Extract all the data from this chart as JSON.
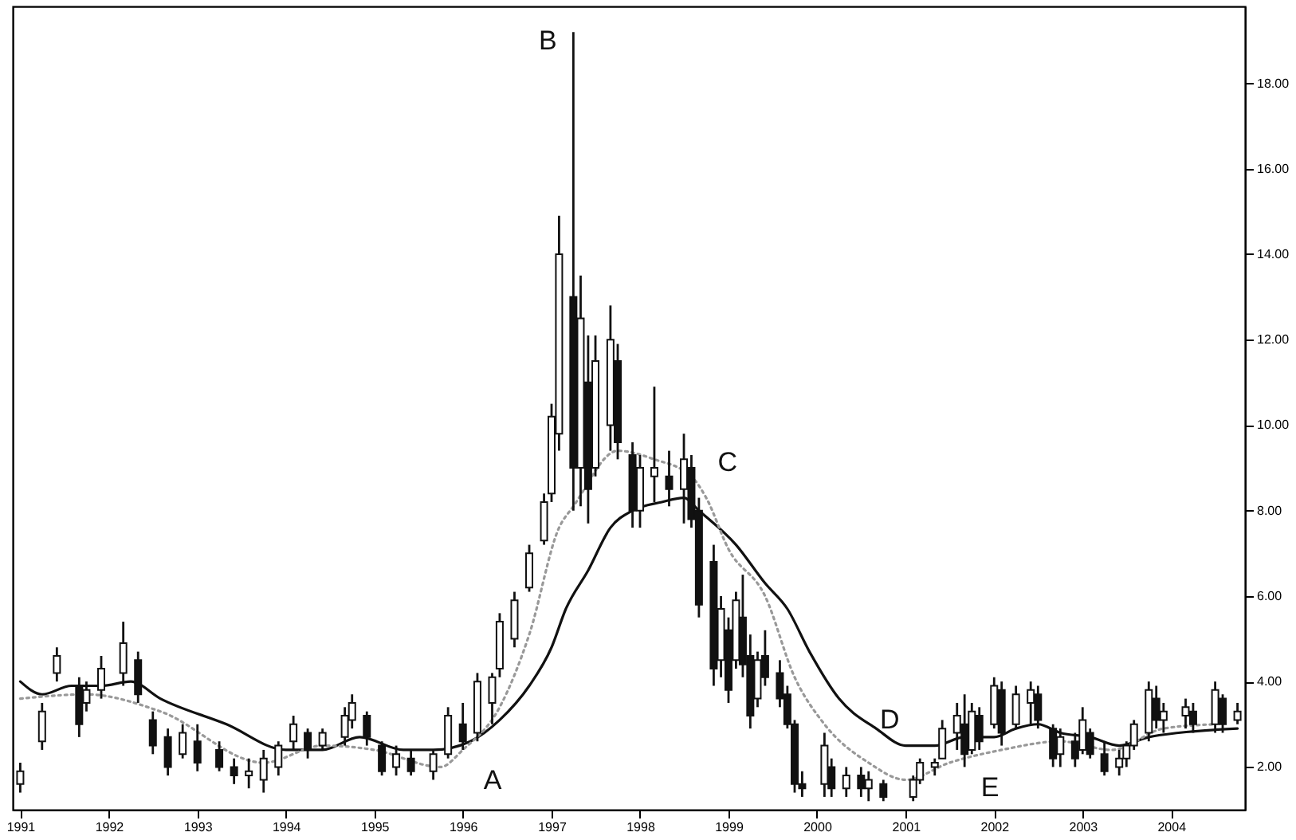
{
  "chart_data": {
    "type": "candlestick",
    "color": "#111111",
    "x": [
      "1991-01",
      "1991-04",
      "1991-06",
      "1991-09",
      "1991-10",
      "1991-12",
      "1992-03",
      "1992-05",
      "1992-07",
      "1992-09",
      "1992-11",
      "1993-01",
      "1993-04",
      "1993-06",
      "1993-08",
      "1993-10",
      "1993-12",
      "1994-02",
      "1994-04",
      "1994-06",
      "1994-09",
      "1994-10",
      "1994-12",
      "1995-02",
      "1995-04",
      "1995-06",
      "1995-09",
      "1995-11",
      "1996-01",
      "1996-03",
      "1996-05",
      "1996-06",
      "1996-08",
      "1996-10",
      "1996-12",
      "1997-01",
      "1997-02",
      "1997-04",
      "1997-05",
      "1997-06",
      "1997-07",
      "1997-09",
      "1997-10",
      "1997-12",
      "1998-01",
      "1998-03",
      "1998-05",
      "1998-07",
      "1998-08",
      "1998-09",
      "1998-11",
      "1998-12",
      "1999-01",
      "1999-02",
      "1999-03",
      "1999-04",
      "1999-05",
      "1999-06",
      "1999-08",
      "1999-09",
      "1999-10",
      "1999-11",
      "2000-02",
      "2000-03",
      "2000-05",
      "2000-07",
      "2000-08",
      "2000-10",
      "2001-02",
      "2001-03",
      "2001-05",
      "2001-06",
      "2001-08",
      "2001-09",
      "2001-10",
      "2001-11",
      "2002-01",
      "2002-02",
      "2002-04",
      "2002-06",
      "2002-07",
      "2002-09",
      "2002-10",
      "2002-12",
      "2003-01",
      "2003-02",
      "2003-04",
      "2003-06",
      "2003-07",
      "2003-08",
      "2003-10",
      "2003-11",
      "2003-12",
      "2004-03",
      "2004-04",
      "2004-07",
      "2004-08",
      "2004-10"
    ],
    "ohlc": [
      [
        1.6,
        2.1,
        1.4,
        1.9
      ],
      [
        2.6,
        3.5,
        2.4,
        3.3
      ],
      [
        4.2,
        4.8,
        4.0,
        4.6
      ],
      [
        3.9,
        4.1,
        2.7,
        3.0
      ],
      [
        3.5,
        4.0,
        3.3,
        3.8
      ],
      [
        3.8,
        4.6,
        3.6,
        4.3
      ],
      [
        4.2,
        5.4,
        3.9,
        4.9
      ],
      [
        4.5,
        4.7,
        3.5,
        3.7
      ],
      [
        3.1,
        3.3,
        2.3,
        2.5
      ],
      [
        2.7,
        2.9,
        1.8,
        2.0
      ],
      [
        2.3,
        3.0,
        2.2,
        2.8
      ],
      [
        2.6,
        3.0,
        1.9,
        2.1
      ],
      [
        2.4,
        2.6,
        1.9,
        2.0
      ],
      [
        2.0,
        2.2,
        1.6,
        1.8
      ],
      [
        1.8,
        2.2,
        1.5,
        1.9
      ],
      [
        1.7,
        2.4,
        1.4,
        2.2
      ],
      [
        2.0,
        2.6,
        1.8,
        2.5
      ],
      [
        2.6,
        3.2,
        2.4,
        3.0
      ],
      [
        2.8,
        2.9,
        2.2,
        2.4
      ],
      [
        2.5,
        2.9,
        2.4,
        2.8
      ],
      [
        2.7,
        3.4,
        2.5,
        3.2
      ],
      [
        3.1,
        3.7,
        2.9,
        3.5
      ],
      [
        3.2,
        3.3,
        2.5,
        2.7
      ],
      [
        2.5,
        2.6,
        1.8,
        1.9
      ],
      [
        2.0,
        2.5,
        1.8,
        2.3
      ],
      [
        2.2,
        2.4,
        1.8,
        1.9
      ],
      [
        1.9,
        2.4,
        1.7,
        2.3
      ],
      [
        2.3,
        3.4,
        2.2,
        3.2
      ],
      [
        3.0,
        3.5,
        2.4,
        2.6
      ],
      [
        2.8,
        4.2,
        2.6,
        4.0
      ],
      [
        3.5,
        4.2,
        3.0,
        4.1
      ],
      [
        4.3,
        5.6,
        4.1,
        5.4
      ],
      [
        5.0,
        6.1,
        4.8,
        5.9
      ],
      [
        6.2,
        7.2,
        6.1,
        7.0
      ],
      [
        7.3,
        8.4,
        7.2,
        8.2
      ],
      [
        8.4,
        10.5,
        8.2,
        10.2
      ],
      [
        9.8,
        14.9,
        9.4,
        14.0
      ],
      [
        13.0,
        19.2,
        8.0,
        9.0
      ],
      [
        9.0,
        13.5,
        8.1,
        12.5
      ],
      [
        11.0,
        12.1,
        7.7,
        8.5
      ],
      [
        9.0,
        12.1,
        8.8,
        11.5
      ],
      [
        10.0,
        12.8,
        9.4,
        12.0
      ],
      [
        11.5,
        11.9,
        9.2,
        9.6
      ],
      [
        9.3,
        9.6,
        7.6,
        8.0
      ],
      [
        8.0,
        9.3,
        7.6,
        9.0
      ],
      [
        8.8,
        10.9,
        8.2,
        9.0
      ],
      [
        8.8,
        9.4,
        8.1,
        8.5
      ],
      [
        8.5,
        9.8,
        7.7,
        9.2
      ],
      [
        9.0,
        9.3,
        7.6,
        7.8
      ],
      [
        8.0,
        8.3,
        5.5,
        5.8
      ],
      [
        6.8,
        7.2,
        3.9,
        4.3
      ],
      [
        4.5,
        6.0,
        4.1,
        5.7
      ],
      [
        5.2,
        5.5,
        3.5,
        3.8
      ],
      [
        4.5,
        6.1,
        4.3,
        5.9
      ],
      [
        5.5,
        6.5,
        4.1,
        4.4
      ],
      [
        4.6,
        5.1,
        2.9,
        3.2
      ],
      [
        3.6,
        4.7,
        3.4,
        4.5
      ],
      [
        4.6,
        5.2,
        3.9,
        4.1
      ],
      [
        4.2,
        4.5,
        3.4,
        3.6
      ],
      [
        3.7,
        3.9,
        2.9,
        3.0
      ],
      [
        3.0,
        3.1,
        1.4,
        1.6
      ],
      [
        1.6,
        1.9,
        1.3,
        1.5
      ],
      [
        1.6,
        2.8,
        1.3,
        2.5
      ],
      [
        2.0,
        2.2,
        1.3,
        1.5
      ],
      [
        1.5,
        2.0,
        1.3,
        1.8
      ],
      [
        1.8,
        2.0,
        1.3,
        1.5
      ],
      [
        1.5,
        1.9,
        1.2,
        1.7
      ],
      [
        1.6,
        1.7,
        1.2,
        1.3
      ],
      [
        1.3,
        1.8,
        1.2,
        1.7
      ],
      [
        1.7,
        2.2,
        1.6,
        2.1
      ],
      [
        2.0,
        2.2,
        1.8,
        2.1
      ],
      [
        2.2,
        3.1,
        2.2,
        2.9
      ],
      [
        2.8,
        3.5,
        2.4,
        3.2
      ],
      [
        3.0,
        3.7,
        2.0,
        2.3
      ],
      [
        2.4,
        3.5,
        2.3,
        3.3
      ],
      [
        3.2,
        3.4,
        2.4,
        2.6
      ],
      [
        3.0,
        4.1,
        2.9,
        3.9
      ],
      [
        3.8,
        4.0,
        2.5,
        2.8
      ],
      [
        3.0,
        3.9,
        2.9,
        3.7
      ],
      [
        3.5,
        4.0,
        3.0,
        3.8
      ],
      [
        3.7,
        3.9,
        2.9,
        3.1
      ],
      [
        2.9,
        3.0,
        2.0,
        2.2
      ],
      [
        2.3,
        2.9,
        2.0,
        2.7
      ],
      [
        2.6,
        2.8,
        2.0,
        2.2
      ],
      [
        2.4,
        3.4,
        2.3,
        3.1
      ],
      [
        2.8,
        2.9,
        2.2,
        2.3
      ],
      [
        2.3,
        2.6,
        1.8,
        1.9
      ],
      [
        2.0,
        2.4,
        1.8,
        2.2
      ],
      [
        2.2,
        2.6,
        2.0,
        2.5
      ],
      [
        2.5,
        3.1,
        2.4,
        3.0
      ],
      [
        2.8,
        4.0,
        2.6,
        3.8
      ],
      [
        3.6,
        3.9,
        2.9,
        3.1
      ],
      [
        3.1,
        3.5,
        2.8,
        3.3
      ],
      [
        3.2,
        3.6,
        2.9,
        3.4
      ],
      [
        3.3,
        3.5,
        2.8,
        3.0
      ],
      [
        3.0,
        4.0,
        2.8,
        3.8
      ],
      [
        3.6,
        3.7,
        2.8,
        3.0
      ],
      [
        3.1,
        3.5,
        3.0,
        3.3
      ]
    ],
    "series": [
      {
        "type": "line",
        "color": "#111111",
        "line_style": "solid",
        "x": [
          "1991-01",
          "1991-04",
          "1991-08",
          "1991-12",
          "1992-04",
          "1992-08",
          "1993-05",
          "1994-01",
          "1994-06",
          "1994-11",
          "1995-05",
          "1995-09",
          "1996-02",
          "1996-06",
          "1996-10",
          "1997-01",
          "1997-03",
          "1997-06",
          "1997-09",
          "1997-12",
          "1998-04",
          "1998-07",
          "1998-09",
          "1999-02",
          "1999-06",
          "1999-09",
          "1999-12",
          "2000-04",
          "2000-09",
          "2001-01",
          "2001-05",
          "2001-09",
          "2002-01",
          "2002-04",
          "2002-07",
          "2002-10",
          "2003-02",
          "2003-06",
          "2003-10",
          "2004-02",
          "2004-10"
        ],
        "values": [
          4.0,
          3.7,
          3.9,
          3.9,
          4.0,
          3.6,
          3.0,
          2.4,
          2.4,
          2.7,
          2.4,
          2.4,
          2.6,
          3.1,
          3.9,
          4.8,
          5.7,
          6.6,
          7.6,
          8.0,
          8.2,
          8.3,
          8.0,
          7.2,
          6.3,
          5.7,
          4.7,
          3.6,
          2.9,
          2.5,
          2.5,
          2.7,
          2.7,
          2.9,
          3.0,
          2.8,
          2.7,
          2.5,
          2.7,
          2.8,
          2.9
        ]
      },
      {
        "type": "line",
        "color": "#999999",
        "line_style": "dotted",
        "x": [
          "1991-01",
          "1991-10",
          "1992-08",
          "1993-10",
          "1994-06",
          "1995-01",
          "1995-10",
          "1996-01",
          "1996-06",
          "1996-10",
          "1997-02",
          "1997-04",
          "1997-10",
          "1998-03",
          "1998-08",
          "1998-10",
          "1999-01",
          "1999-06",
          "1999-10",
          "2000-02",
          "2000-08",
          "2001-01",
          "2001-07",
          "2002-02",
          "2002-10",
          "2003-05",
          "2003-12",
          "2004-07"
        ],
        "values": [
          3.6,
          3.7,
          3.3,
          2.1,
          2.5,
          2.4,
          2.0,
          2.4,
          3.4,
          5.1,
          7.6,
          8.1,
          9.4,
          9.2,
          8.8,
          8.3,
          7.1,
          6.0,
          4.1,
          3.0,
          2.1,
          1.7,
          2.1,
          2.4,
          2.6,
          2.4,
          2.9,
          3.0
        ]
      }
    ],
    "xlim": [
      "1990-12",
      "2004-11"
    ],
    "xticks": [
      "1991",
      "1992",
      "1993",
      "1994",
      "1995",
      "1996",
      "1997",
      "1998",
      "1999",
      "2000",
      "2001",
      "2002",
      "2003",
      "2004"
    ],
    "ylim": [
      1,
      19.8
    ],
    "yticks": [
      {
        "value": 2,
        "label": "2.00"
      },
      {
        "value": 4,
        "label": "4.00"
      },
      {
        "value": 6,
        "label": "6.00"
      },
      {
        "value": 8,
        "label": "8.00"
      },
      {
        "value": 10,
        "label": "10.00"
      },
      {
        "value": 12,
        "label": "12.00"
      },
      {
        "value": 14,
        "label": "14.00"
      },
      {
        "value": 16,
        "label": "16.00"
      },
      {
        "value": 18,
        "label": "18.00"
      }
    ],
    "annotations": [
      {
        "text": "A",
        "x": "1996-02",
        "y": 2.5
      },
      {
        "text": "B",
        "x": "1997-04",
        "y": 19.2
      },
      {
        "text": "C",
        "x": "1998-09",
        "y": 8.3
      },
      {
        "text": "D",
        "x": "2001-01",
        "y": 2.5
      },
      {
        "text": "E",
        "x": "2001-09",
        "y": 2.4
      }
    ],
    "grid": false,
    "marker": "none"
  }
}
